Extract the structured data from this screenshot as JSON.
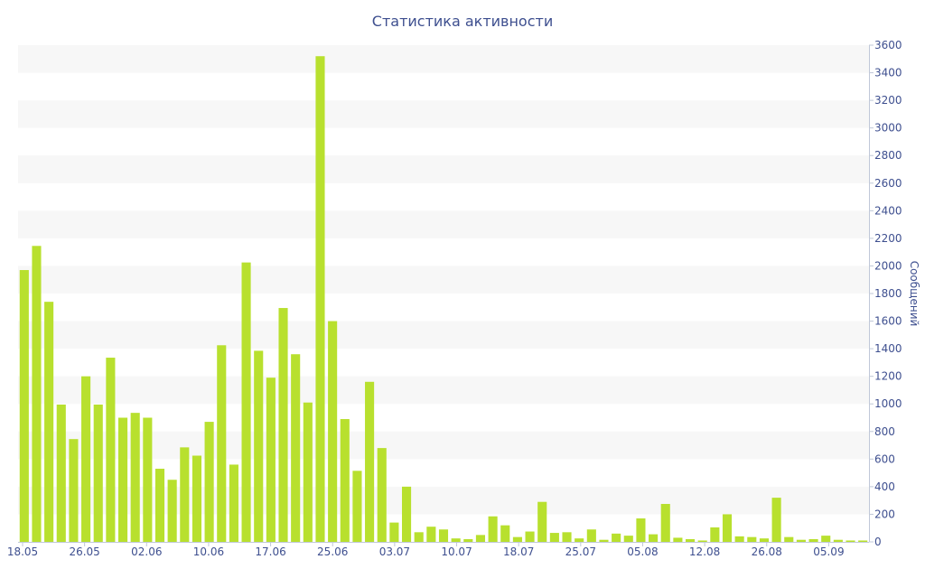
{
  "chart_data": {
    "type": "bar",
    "title": "Статистика активности",
    "ylabel": "Сообщений",
    "xlabel": "",
    "ylim": [
      0,
      3600
    ],
    "y_ticks": [
      0,
      200,
      400,
      600,
      800,
      1000,
      1200,
      1400,
      1600,
      1800,
      2000,
      2200,
      2400,
      2600,
      2800,
      3000,
      3200,
      3400,
      3600
    ],
    "y_axis_side": "right",
    "grid": "alternating horizontal bands",
    "x_tick_labels": [
      "18.05",
      "26.05",
      "02.06",
      "10.06",
      "17.06",
      "25.06",
      "03.07",
      "10.07",
      "18.07",
      "25.07",
      "05.08",
      "12.08",
      "26.08",
      "05.09"
    ],
    "bar_color": "#b8e02e",
    "values": [
      1970,
      2145,
      1740,
      995,
      745,
      1200,
      995,
      1335,
      900,
      935,
      900,
      530,
      450,
      685,
      625,
      870,
      1425,
      560,
      2025,
      1385,
      1190,
      1695,
      1360,
      1010,
      3520,
      1600,
      890,
      515,
      1160,
      680,
      140,
      400,
      70,
      110,
      90,
      25,
      20,
      50,
      185,
      120,
      35,
      75,
      290,
      65,
      70,
      25,
      90,
      15,
      60,
      45,
      170,
      55,
      275,
      30,
      20,
      10,
      105,
      200,
      40,
      35,
      25,
      320,
      35,
      15,
      20,
      45,
      15,
      10,
      10
    ]
  }
}
